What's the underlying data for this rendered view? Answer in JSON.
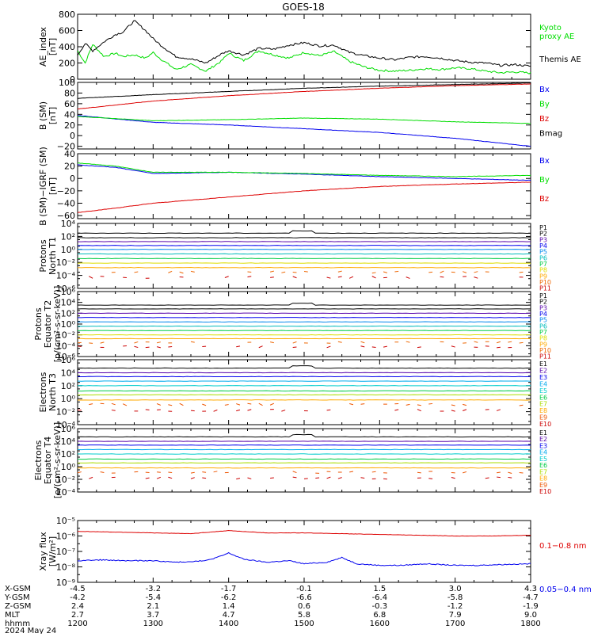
{
  "title": "GOES-18",
  "date_label": "2024 May 24",
  "orbit_labels": [
    "X-GSM",
    "Y-GSM",
    "Z-GSM",
    "MLT",
    "hhmm"
  ],
  "orbit_table": [
    {
      "hhmm": "1200",
      "x": "-4.5",
      "y": "-4.2",
      "z": "2.4",
      "mlt": "2.7"
    },
    {
      "hhmm": "1300",
      "x": "-3.2",
      "y": "-5.4",
      "z": "2.1",
      "mlt": "3.7"
    },
    {
      "hhmm": "1400",
      "x": "-1.7",
      "y": "-6.2",
      "z": "1.4",
      "mlt": "4.7"
    },
    {
      "hhmm": "1500",
      "x": "-0.1",
      "y": "-6.6",
      "z": "0.6",
      "mlt": "5.8"
    },
    {
      "hhmm": "1600",
      "x": "1.5",
      "y": "-6.4",
      "z": "-0.3",
      "mlt": "6.8"
    },
    {
      "hhmm": "1700",
      "x": "3.0",
      "y": "-5.8",
      "z": "-1.2",
      "mlt": "7.9"
    },
    {
      "hhmm": "1800",
      "x": "4.3",
      "y": "-4.7",
      "z": "-1.9",
      "mlt": "9.0"
    }
  ],
  "colors": {
    "black": "#000000",
    "green": "#00dd00",
    "blue": "#0000ee",
    "red": "#dd0000"
  },
  "chart_data": [
    {
      "id": "ae",
      "type": "line",
      "ylabel": [
        "AE_index",
        "[nT]"
      ],
      "ylim": [
        0,
        800
      ],
      "yticks": [
        0,
        200,
        400,
        600,
        800
      ],
      "tick_labels": [
        "0",
        "200",
        "400",
        "600",
        "800"
      ],
      "series": [
        {
          "name": "Kyoto proxy AE",
          "label_lines": [
            "Kyoto",
            "proxy AE"
          ],
          "color": "#00dd00",
          "x": [
            12.0,
            12.1,
            12.2,
            12.35,
            12.5,
            12.6,
            12.75,
            12.9,
            13.0,
            13.1,
            13.3,
            13.5,
            13.7,
            13.9,
            14.0,
            14.2,
            14.4,
            14.6,
            14.8,
            15.0,
            15.2,
            15.4,
            15.6,
            15.8,
            16.0,
            16.2,
            16.4,
            16.6,
            16.8,
            17.0,
            17.2,
            17.4,
            17.6,
            17.8,
            18.0
          ],
          "y": [
            350,
            200,
            430,
            280,
            320,
            280,
            300,
            260,
            330,
            250,
            120,
            180,
            100,
            220,
            320,
            230,
            350,
            300,
            260,
            330,
            290,
            340,
            220,
            150,
            110,
            100,
            110,
            130,
            120,
            140,
            130,
            100,
            80,
            90,
            75
          ]
        },
        {
          "name": "Themis AE",
          "label_lines": [
            "Themis AE"
          ],
          "color": "#000000",
          "x": [
            12.0,
            12.1,
            12.2,
            12.35,
            12.5,
            12.6,
            12.75,
            12.9,
            13.0,
            13.1,
            13.3,
            13.5,
            13.7,
            13.9,
            14.0,
            14.2,
            14.4,
            14.6,
            14.8,
            15.0,
            15.2,
            15.4,
            15.6,
            15.8,
            16.0,
            16.2,
            16.4,
            16.6,
            16.8,
            17.0,
            17.2,
            17.4,
            17.6,
            17.8,
            18.0
          ],
          "y": [
            300,
            440,
            350,
            460,
            550,
            580,
            720,
            600,
            500,
            420,
            280,
            250,
            200,
            310,
            350,
            300,
            380,
            370,
            420,
            450,
            410,
            420,
            330,
            290,
            260,
            240,
            270,
            280,
            260,
            230,
            210,
            200,
            170,
            180,
            160
          ]
        }
      ]
    },
    {
      "id": "bsm",
      "type": "line",
      "ylabel": [
        "B (SM)",
        "[nT]"
      ],
      "ylim": [
        -25,
        100
      ],
      "yticks": [
        -20,
        0,
        20,
        40,
        60,
        80,
        100
      ],
      "tick_labels": [
        "−20",
        "0",
        "20",
        "40",
        "60",
        "80",
        "100"
      ],
      "series": [
        {
          "name": "Bx",
          "color": "#0000ee",
          "x": [
            12,
            13,
            14,
            15,
            16,
            17,
            18
          ],
          "y": [
            38,
            25,
            20,
            13,
            6,
            -5,
            -20
          ]
        },
        {
          "name": "By",
          "color": "#00dd00",
          "x": [
            12,
            13,
            14,
            15,
            16,
            17,
            18
          ],
          "y": [
            36,
            28,
            30,
            33,
            31,
            26,
            23
          ]
        },
        {
          "name": "Bz",
          "color": "#dd0000",
          "x": [
            12,
            13,
            14,
            15,
            16,
            17,
            18
          ],
          "y": [
            50,
            65,
            75,
            83,
            89,
            94,
            97
          ]
        },
        {
          "name": "Bmag",
          "color": "#000000",
          "x": [
            12,
            13,
            14,
            15,
            16,
            17,
            18
          ],
          "y": [
            70,
            77,
            83,
            89,
            93,
            96,
            99
          ]
        }
      ]
    },
    {
      "id": "bsmigrf",
      "type": "line",
      "ylabel": [
        "B (SM)−IGRF (SM)",
        "[nT]"
      ],
      "ylim": [
        -65,
        40
      ],
      "yticks": [
        -60,
        -40,
        -20,
        0,
        20,
        40
      ],
      "tick_labels": [
        "−60",
        "−40",
        "−20",
        "0",
        "20",
        "40"
      ],
      "series": [
        {
          "name": "Bx",
          "color": "#0000ee",
          "x": [
            12,
            12.5,
            13,
            14,
            15,
            16,
            17,
            18
          ],
          "y": [
            22,
            18,
            8,
            10,
            7,
            3,
            0,
            -3
          ]
        },
        {
          "name": "By",
          "color": "#00dd00",
          "x": [
            12,
            12.5,
            13,
            14,
            15,
            16,
            17,
            18
          ],
          "y": [
            25,
            20,
            10,
            10,
            8,
            5,
            3,
            5
          ]
        },
        {
          "name": "Bz",
          "color": "#dd0000",
          "x": [
            12,
            12.5,
            13,
            14,
            15,
            16,
            17,
            18
          ],
          "y": [
            -55,
            -48,
            -40,
            -30,
            -20,
            -13,
            -9,
            -6
          ]
        }
      ]
    },
    {
      "id": "protons_t1",
      "type": "line",
      "scale": "log",
      "ylabel": [
        "Protons",
        "North T1"
      ],
      "ylim": [
        -6,
        4
      ],
      "yticks": [
        -6,
        -4,
        -2,
        0,
        2,
        4
      ],
      "tick_labels": [
        "10⁻⁶",
        "10⁻⁴",
        "10⁻²",
        "10⁰",
        "10²",
        "10⁴"
      ],
      "series": [
        {
          "name": "P1",
          "color": "#000000",
          "level": 2.5
        },
        {
          "name": "P2",
          "color": "#000000",
          "level": 1.8
        },
        {
          "name": "P3",
          "color": "#5500aa",
          "level": 1.2
        },
        {
          "name": "P4",
          "color": "#0000ee",
          "level": 0.6
        },
        {
          "name": "P5",
          "color": "#0088ee",
          "level": 0.0
        },
        {
          "name": "P6",
          "color": "#00bbbb",
          "level": -0.7
        },
        {
          "name": "P7",
          "color": "#00cc44",
          "level": -1.4
        },
        {
          "name": "P8",
          "color": "#dddd00",
          "level": -2.1
        },
        {
          "name": "P9",
          "color": "#ffaa00",
          "level": -2.8
        },
        {
          "name": "P10",
          "color": "#ee6600",
          "level": -3.5
        },
        {
          "name": "P11",
          "color": "#cc0000",
          "level": -4.3
        }
      ]
    },
    {
      "id": "protons_t2",
      "type": "line",
      "scale": "log",
      "ylabel": [
        "Protons",
        "Equator T2",
        "[p/(cm²-s-sr-keV)]"
      ],
      "ylim": [
        -6,
        6
      ],
      "yticks": [
        -6,
        -4,
        -2,
        0,
        2,
        4,
        6
      ],
      "tick_labels": [
        "10⁻⁶",
        "10⁻⁴",
        "10⁻²",
        "10⁰",
        "10²",
        "10⁴",
        "10⁶"
      ],
      "series": [
        {
          "name": "P1",
          "color": "#000000",
          "level": 3.5
        },
        {
          "name": "P2",
          "color": "#000000",
          "level": 2.8
        },
        {
          "name": "P3",
          "color": "#5500aa",
          "level": 2.0
        },
        {
          "name": "P4",
          "color": "#0000ee",
          "level": 1.2
        },
        {
          "name": "P5",
          "color": "#0088ee",
          "level": 0.4
        },
        {
          "name": "P6",
          "color": "#00bbbb",
          "level": -0.4
        },
        {
          "name": "P7",
          "color": "#00cc44",
          "level": -1.2
        },
        {
          "name": "P8",
          "color": "#dddd00",
          "level": -2.0
        },
        {
          "name": "P9",
          "color": "#ffaa00",
          "level": -2.7
        },
        {
          "name": "P10",
          "color": "#ee6600",
          "level": -3.4
        },
        {
          "name": "P11",
          "color": "#cc0000",
          "level": -4.2
        }
      ]
    },
    {
      "id": "electrons_t3",
      "type": "line",
      "scale": "log",
      "ylabel": [
        "Electrons",
        "North T3"
      ],
      "ylim": [
        -4,
        6
      ],
      "yticks": [
        -4,
        -2,
        0,
        2,
        4,
        6
      ],
      "tick_labels": [
        "10⁻⁴",
        "10⁻²",
        "10⁰",
        "10²",
        "10⁴",
        "10⁶"
      ],
      "series": [
        {
          "name": "E1",
          "color": "#000000",
          "level": 4.7
        },
        {
          "name": "E2",
          "color": "#5500aa",
          "level": 4.0
        },
        {
          "name": "E3",
          "color": "#0000ee",
          "level": 3.4
        },
        {
          "name": "E4",
          "color": "#00aaee",
          "level": 2.7
        },
        {
          "name": "E5",
          "color": "#00cccc",
          "level": 2.0
        },
        {
          "name": "E6",
          "color": "#00cc44",
          "level": 1.2
        },
        {
          "name": "E7",
          "color": "#aadd00",
          "level": 0.6
        },
        {
          "name": "E8",
          "color": "#ffaa00",
          "level": -0.2
        },
        {
          "name": "E9",
          "color": "#ee5500",
          "level": -0.9
        },
        {
          "name": "E10",
          "color": "#cc0000",
          "level": -1.8
        }
      ]
    },
    {
      "id": "electrons_t4",
      "type": "line",
      "scale": "log",
      "ylabel": [
        "Electrons",
        "Equator T4",
        "[e/(cm²-s-sr-keV)]"
      ],
      "ylim": [
        -4,
        6
      ],
      "yticks": [
        -4,
        -2,
        0,
        2,
        4,
        6
      ],
      "tick_labels": [
        "10⁻⁴",
        "10⁻²",
        "10⁰",
        "10²",
        "10⁴",
        "10⁶"
      ],
      "series": [
        {
          "name": "E1",
          "color": "#000000",
          "level": 4.7
        },
        {
          "name": "E2",
          "color": "#5500aa",
          "level": 4.0
        },
        {
          "name": "E3",
          "color": "#0000ee",
          "level": 3.4
        },
        {
          "name": "E4",
          "color": "#00aaee",
          "level": 2.7
        },
        {
          "name": "E5",
          "color": "#00cccc",
          "level": 2.0
        },
        {
          "name": "E6",
          "color": "#00cc44",
          "level": 1.2
        },
        {
          "name": "E7",
          "color": "#aadd00",
          "level": 0.6
        },
        {
          "name": "E8",
          "color": "#ffaa00",
          "level": -0.2
        },
        {
          "name": "E9",
          "color": "#ee5500",
          "level": -0.9
        },
        {
          "name": "E10",
          "color": "#cc0000",
          "level": -1.8
        }
      ]
    },
    {
      "id": "xray",
      "type": "line",
      "scale": "log",
      "ylabel": [
        "Xray flux",
        "[W/m²]"
      ],
      "ylim": [
        -9,
        -5
      ],
      "yticks": [
        -9,
        -8,
        -7,
        -6,
        -5
      ],
      "tick_labels": [
        "10⁻⁹",
        "10⁻⁸",
        "10⁻⁷",
        "10⁻⁶",
        "10⁻⁵"
      ],
      "series": [
        {
          "name": "0.1−0.8 nm",
          "color": "#dd0000",
          "x": [
            12.0,
            12.5,
            13.0,
            13.5,
            14.0,
            14.5,
            15.0,
            15.5,
            16.0,
            16.5,
            17.0,
            17.5,
            18.0
          ],
          "y": [
            -5.7,
            -5.75,
            -5.8,
            -5.85,
            -5.65,
            -5.8,
            -5.8,
            -5.85,
            -5.9,
            -5.95,
            -6.0,
            -6.0,
            -5.95
          ]
        },
        {
          "name": "0.05−0.4 nm",
          "color": "#0000ee",
          "x": [
            12.0,
            12.3,
            12.6,
            13.0,
            13.3,
            13.7,
            13.9,
            14.0,
            14.2,
            14.5,
            14.8,
            15.0,
            15.3,
            15.5,
            15.7,
            16.0,
            16.3,
            16.6,
            17.0,
            17.3,
            17.6,
            18.0
          ],
          "y": [
            -7.6,
            -7.55,
            -7.6,
            -7.6,
            -7.7,
            -7.6,
            -7.3,
            -7.1,
            -7.5,
            -7.7,
            -7.6,
            -7.8,
            -7.7,
            -7.4,
            -7.8,
            -7.9,
            -7.9,
            -7.8,
            -7.9,
            -7.9,
            -7.85,
            -7.8
          ]
        }
      ]
    }
  ]
}
